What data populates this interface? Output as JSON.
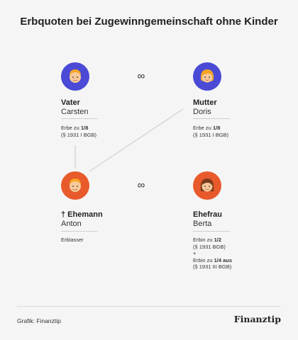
{
  "title": "Erbquoten bei Zugewinngemeinschaft ohne Kinder",
  "colors": {
    "male_avatar": "#4a4ad6",
    "female_avatar": "#e85a2c",
    "skin": "#f8c99a",
    "hair_light": "#f5a623",
    "hair_dark": "#7a3d1c"
  },
  "persons": {
    "vater": {
      "role": "Vater",
      "name": "Carsten",
      "note_prefix": "Erbe zu ",
      "note_share": "1/8",
      "note_law": "(§ 1931 I BGB)"
    },
    "mutter": {
      "role": "Mutter",
      "name": "Doris",
      "note_prefix": "Erbe zu ",
      "note_share": "1/8",
      "note_law": "(§ 1931 I BGB)"
    },
    "ehemann": {
      "role": "† Ehemann",
      "name": "Anton",
      "note": "Erblasser"
    },
    "ehefrau": {
      "role": "Ehefrau",
      "name": "Berta",
      "note1_prefix": "Erbin zu ",
      "note1_share": "1/2",
      "note1_law": "(§ 1931 BGB)",
      "plus": "+",
      "note2_prefix": "Erbin zu ",
      "note2_share": "1/4 aus",
      "note2_law": "(§ 1931 III BGB)"
    }
  },
  "marriage_symbol": "∞",
  "footer": {
    "credit": "Grafik: Finanztip",
    "brand": "Finanztip"
  }
}
